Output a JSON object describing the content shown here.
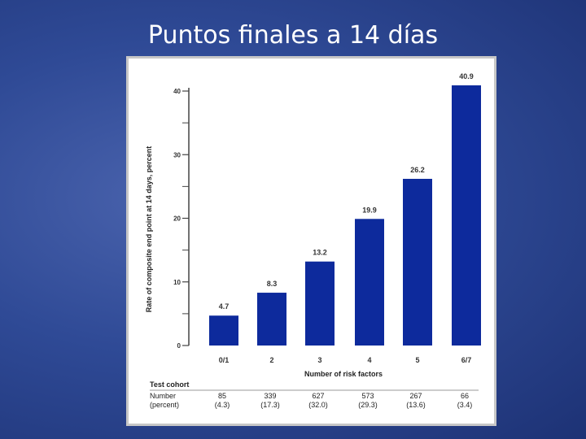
{
  "slide": {
    "title": "Puntos finales a 14 días"
  },
  "colors": {
    "bar": "#0d2a9c",
    "background": "#2f4a96",
    "axis": "#444444"
  },
  "chart_data": {
    "type": "bar",
    "categories": [
      "0/1",
      "2",
      "3",
      "4",
      "5",
      "6/7"
    ],
    "values": [
      4.7,
      8.3,
      13.2,
      19.9,
      26.2,
      40.9
    ],
    "data_labels": [
      "4.7",
      "8.3",
      "13.2",
      "19.9",
      "26.2",
      "40.9"
    ],
    "xlabel": "Number of risk factors",
    "ylabel": "Rate of composite end point at 14 days, percent",
    "ylim": [
      0,
      40
    ],
    "yticks": [
      0,
      10,
      20,
      30,
      40
    ],
    "grid": false
  },
  "cohort_table": {
    "title": "Test cohort",
    "row_label_1": "Number",
    "row_label_2": "(percent)",
    "numbers": [
      "85",
      "339",
      "627",
      "573",
      "267",
      "66"
    ],
    "percents": [
      "(4.3)",
      "(17.3)",
      "(32.0)",
      "(29.3)",
      "(13.6)",
      "(3.4)"
    ]
  }
}
